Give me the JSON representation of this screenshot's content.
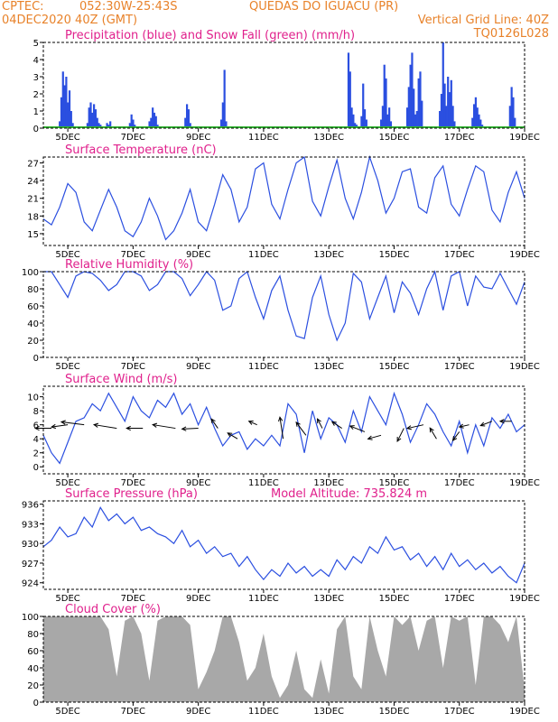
{
  "header": {
    "line1_left": "CPTEC:",
    "line1_coords": "052:30W-25:43S",
    "line1_location": "QUEDAS DO IGUACU (PR)",
    "line2_left": "04DEC2020 40Z (GMT)",
    "line2_right": "Vertical Grid Line: 40Z",
    "line3_right": "TQ0126L028"
  },
  "colors": {
    "header": "#e8822a",
    "title": "#e0208c",
    "line": "#2b4fe0",
    "snow": "#2fb02f",
    "cloud": "#a8a8a8",
    "axis": "#000000"
  },
  "x_axis": {
    "ticks": [
      "5DEC",
      "7DEC",
      "9DEC",
      "11DEC",
      "13DEC",
      "15DEC",
      "17DEC",
      "19DEC"
    ],
    "tick_days": [
      5,
      7,
      9,
      11,
      13,
      15,
      17,
      19
    ],
    "range_days": [
      4.25,
      19.0
    ]
  },
  "chart_data": [
    {
      "id": "precip",
      "type": "bar",
      "title": "Precipitation (blue) and Snow Fall (green) (mm/h)",
      "ylim": [
        0,
        5
      ],
      "yticks": [
        0,
        1,
        2,
        3,
        4,
        5
      ],
      "grid": false,
      "series": [
        {
          "name": "Precipitation",
          "color": "#2b4fe0",
          "x": [
            4.75,
            4.8,
            4.85,
            4.9,
            4.95,
            5.0,
            5.05,
            5.1,
            5.15,
            5.6,
            5.65,
            5.7,
            5.75,
            5.8,
            5.85,
            5.9,
            5.95,
            6.0,
            6.2,
            6.25,
            6.3,
            6.35,
            6.9,
            6.95,
            7.0,
            7.05,
            7.5,
            7.55,
            7.6,
            7.65,
            7.7,
            7.75,
            8.6,
            8.65,
            8.7,
            8.75,
            9.7,
            9.75,
            9.8,
            9.85,
            13.6,
            13.65,
            13.7,
            13.75,
            13.8,
            13.85,
            14.0,
            14.05,
            14.1,
            14.15,
            14.6,
            14.65,
            14.7,
            14.75,
            14.8,
            14.85,
            14.9,
            15.4,
            15.45,
            15.5,
            15.55,
            15.6,
            15.65,
            15.7,
            15.75,
            15.8,
            15.85,
            16.4,
            16.45,
            16.5,
            16.55,
            16.6,
            16.65,
            16.7,
            16.75,
            16.8,
            16.85,
            17.4,
            17.45,
            17.5,
            17.55,
            17.6,
            17.65,
            17.7,
            18.55,
            18.6,
            18.65,
            18.7
          ],
          "values": [
            0.4,
            1.8,
            3.3,
            2.5,
            3.0,
            1.5,
            2.2,
            1.0,
            0.3,
            0.3,
            1.2,
            1.5,
            0.9,
            1.4,
            1.1,
            0.6,
            0.3,
            0.2,
            0.3,
            0.2,
            0.4,
            0.1,
            0.3,
            0.8,
            0.5,
            0.2,
            0.4,
            0.6,
            1.2,
            0.9,
            0.7,
            0.2,
            0.6,
            1.4,
            1.1,
            0.3,
            0.5,
            1.5,
            3.4,
            0.4,
            4.4,
            3.3,
            1.2,
            0.8,
            0.3,
            0.2,
            0.7,
            2.6,
            1.1,
            0.5,
            0.5,
            1.3,
            3.7,
            2.9,
            0.8,
            1.2,
            0.4,
            1.2,
            2.4,
            3.7,
            4.4,
            2.3,
            0.8,
            1.0,
            2.9,
            3.3,
            1.6,
            1.0,
            2.0,
            5.0,
            2.6,
            1.3,
            3.0,
            2.1,
            2.8,
            1.3,
            0.4,
            0.6,
            1.4,
            1.8,
            1.2,
            0.8,
            0.5,
            0.2,
            1.3,
            2.4,
            1.8,
            0.6
          ]
        },
        {
          "name": "Snow Fall",
          "color": "#2fb02f",
          "x": [
            4.25,
            19.0
          ],
          "values": [
            0,
            0
          ]
        }
      ]
    },
    {
      "id": "temp",
      "type": "line",
      "title": "Surface Temperature (nC)",
      "ylim": [
        13,
        28
      ],
      "yticks": [
        15,
        18,
        21,
        24,
        27
      ],
      "grid": false,
      "series": [
        {
          "name": "Temperature",
          "color": "#2b4fe0",
          "x": [
            4.25,
            4.5,
            4.75,
            5.0,
            5.25,
            5.5,
            5.75,
            6.0,
            6.25,
            6.5,
            6.75,
            7.0,
            7.25,
            7.5,
            7.75,
            8.0,
            8.25,
            8.5,
            8.75,
            9.0,
            9.25,
            9.5,
            9.75,
            10.0,
            10.25,
            10.5,
            10.75,
            11.0,
            11.25,
            11.5,
            11.75,
            12.0,
            12.25,
            12.5,
            12.75,
            13.0,
            13.25,
            13.5,
            13.75,
            14.0,
            14.25,
            14.5,
            14.75,
            15.0,
            15.25,
            15.5,
            15.75,
            16.0,
            16.25,
            16.5,
            16.75,
            17.0,
            17.25,
            17.5,
            17.75,
            18.0,
            18.25,
            18.5,
            18.75,
            19.0
          ],
          "values": [
            17.5,
            16.5,
            19.5,
            23.5,
            22.0,
            17.0,
            15.5,
            19.0,
            22.5,
            19.5,
            15.5,
            14.5,
            17.0,
            21.0,
            18.0,
            14.0,
            15.5,
            18.5,
            22.5,
            17.0,
            15.5,
            20.0,
            25.0,
            22.5,
            17.0,
            19.5,
            26.0,
            27.0,
            20.0,
            17.5,
            22.5,
            27.0,
            28.0,
            20.5,
            18.0,
            23.0,
            27.5,
            21.0,
            17.5,
            22.0,
            28.0,
            24.0,
            18.5,
            21.0,
            25.5,
            26.0,
            19.5,
            18.5,
            24.5,
            26.5,
            20.0,
            18.0,
            22.5,
            26.5,
            25.5,
            19.0,
            17.0,
            22.0,
            25.5,
            21.0
          ]
        }
      ]
    },
    {
      "id": "rh",
      "type": "line",
      "title": "Relative Humidity (%)",
      "ylim": [
        0,
        100
      ],
      "yticks": [
        0,
        20,
        40,
        60,
        80,
        100
      ],
      "grid": false,
      "series": [
        {
          "name": "Relative Humidity",
          "color": "#2b4fe0",
          "x": [
            4.25,
            4.5,
            4.75,
            5.0,
            5.25,
            5.5,
            5.75,
            6.0,
            6.25,
            6.5,
            6.75,
            7.0,
            7.25,
            7.5,
            7.75,
            8.0,
            8.25,
            8.5,
            8.75,
            9.0,
            9.25,
            9.5,
            9.75,
            10.0,
            10.25,
            10.5,
            10.75,
            11.0,
            11.25,
            11.5,
            11.75,
            12.0,
            12.25,
            12.5,
            12.75,
            13.0,
            13.25,
            13.5,
            13.75,
            14.0,
            14.25,
            14.5,
            14.75,
            15.0,
            15.25,
            15.5,
            15.75,
            16.0,
            16.25,
            16.5,
            16.75,
            17.0,
            17.25,
            17.5,
            17.75,
            18.0,
            18.25,
            18.5,
            18.75,
            19.0
          ],
          "values": [
            100,
            100,
            85,
            70,
            95,
            100,
            98,
            90,
            78,
            85,
            100,
            100,
            95,
            78,
            85,
            100,
            100,
            92,
            72,
            85,
            100,
            90,
            55,
            60,
            92,
            100,
            70,
            45,
            78,
            95,
            55,
            25,
            22,
            70,
            95,
            50,
            20,
            40,
            98,
            88,
            45,
            70,
            95,
            52,
            88,
            75,
            50,
            80,
            100,
            55,
            95,
            100,
            60,
            95,
            82,
            80,
            98,
            80,
            62,
            88
          ]
        }
      ]
    },
    {
      "id": "wind",
      "type": "line",
      "title": "Surface Wind (m/s)",
      "ylim": [
        -1,
        11.5
      ],
      "yticks": [
        0,
        2,
        4,
        6,
        8,
        10
      ],
      "grid": false,
      "series": [
        {
          "name": "Wind Speed",
          "color": "#2b4fe0",
          "x": [
            4.25,
            4.5,
            4.75,
            5.0,
            5.25,
            5.5,
            5.75,
            6.0,
            6.25,
            6.5,
            6.75,
            7.0,
            7.25,
            7.5,
            7.75,
            8.0,
            8.25,
            8.5,
            8.75,
            9.0,
            9.25,
            9.5,
            9.75,
            10.0,
            10.25,
            10.5,
            10.75,
            11.0,
            11.25,
            11.5,
            11.75,
            12.0,
            12.25,
            12.5,
            12.75,
            13.0,
            13.25,
            13.5,
            13.75,
            14.0,
            14.25,
            14.5,
            14.75,
            15.0,
            15.25,
            15.5,
            15.75,
            16.0,
            16.25,
            16.5,
            16.75,
            17.0,
            17.25,
            17.5,
            17.75,
            18.0,
            18.25,
            18.5,
            18.75,
            19.0
          ],
          "values": [
            4.5,
            2.0,
            0.5,
            3.5,
            6.5,
            7.0,
            9.0,
            8.0,
            10.5,
            8.5,
            6.5,
            10.0,
            8.0,
            7.0,
            9.5,
            8.5,
            10.5,
            7.5,
            9.0,
            6.0,
            8.5,
            5.5,
            3.0,
            4.5,
            5.0,
            2.5,
            4.0,
            3.0,
            4.5,
            3.0,
            9.0,
            7.5,
            2.0,
            8.0,
            4.0,
            7.0,
            6.0,
            3.5,
            8.0,
            5.0,
            10.0,
            8.0,
            6.0,
            10.5,
            7.5,
            3.5,
            6.0,
            9.0,
            7.5,
            5.0,
            3.0,
            6.5,
            2.0,
            6.0,
            3.0,
            7.0,
            5.5,
            7.5,
            5.0,
            6.0
          ]
        }
      ],
      "arrows": [
        {
          "x": 4.5,
          "y": 5.5,
          "dx": -1,
          "dy": 0
        },
        {
          "x": 5.0,
          "y": 6.0,
          "dx": -1,
          "dy": -0.3
        },
        {
          "x": 5.5,
          "y": 6.0,
          "dx": -1.4,
          "dy": 0.4
        },
        {
          "x": 6.5,
          "y": 5.5,
          "dx": -1.4,
          "dy": 0.5
        },
        {
          "x": 7.3,
          "y": 5.5,
          "dx": -1.0,
          "dy": 0
        },
        {
          "x": 8.3,
          "y": 5.5,
          "dx": -1.4,
          "dy": 0.5
        },
        {
          "x": 9.0,
          "y": 5.5,
          "dx": -1.0,
          "dy": -0.1
        },
        {
          "x": 9.6,
          "y": 5.5,
          "dx": -0.4,
          "dy": 1.3
        },
        {
          "x": 10.2,
          "y": 4.0,
          "dx": -0.6,
          "dy": 0.8
        },
        {
          "x": 10.8,
          "y": 6.0,
          "dx": -0.5,
          "dy": 0.5
        },
        {
          "x": 11.6,
          "y": 4.0,
          "dx": -0.2,
          "dy": 3.0
        },
        {
          "x": 12.3,
          "y": 4.5,
          "dx": -0.6,
          "dy": 1.8
        },
        {
          "x": 12.8,
          "y": 5.5,
          "dx": -0.3,
          "dy": 1.3
        },
        {
          "x": 13.4,
          "y": 5.5,
          "dx": -0.6,
          "dy": 0.9
        },
        {
          "x": 14.1,
          "y": 5.0,
          "dx": -0.9,
          "dy": 0.8
        },
        {
          "x": 14.6,
          "y": 4.5,
          "dx": -0.8,
          "dy": -0.5
        },
        {
          "x": 15.3,
          "y": 5.5,
          "dx": -0.4,
          "dy": -1.8
        },
        {
          "x": 15.9,
          "y": 6.0,
          "dx": -1.0,
          "dy": -0.5
        },
        {
          "x": 16.3,
          "y": 4.0,
          "dx": -0.4,
          "dy": 1.5
        },
        {
          "x": 17.0,
          "y": 5.0,
          "dx": -0.4,
          "dy": -1.2
        },
        {
          "x": 17.3,
          "y": 6.0,
          "dx": -0.6,
          "dy": -0.3
        },
        {
          "x": 18.0,
          "y": 6.5,
          "dx": -0.7,
          "dy": -0.6
        },
        {
          "x": 18.6,
          "y": 6.5,
          "dx": -0.7,
          "dy": 0
        }
      ]
    },
    {
      "id": "pressure",
      "type": "line",
      "title": "Surface Pressure (hPa)",
      "subtitle": "Model Altitude: 735.824 m",
      "ylim": [
        923,
        936.5
      ],
      "yticks": [
        924,
        927,
        930,
        933,
        936
      ],
      "grid": false,
      "series": [
        {
          "name": "Pressure",
          "color": "#2b4fe0",
          "x": [
            4.25,
            4.5,
            4.75,
            5.0,
            5.25,
            5.5,
            5.75,
            6.0,
            6.25,
            6.5,
            6.75,
            7.0,
            7.25,
            7.5,
            7.75,
            8.0,
            8.25,
            8.5,
            8.75,
            9.0,
            9.25,
            9.5,
            9.75,
            10.0,
            10.25,
            10.5,
            10.75,
            11.0,
            11.25,
            11.5,
            11.75,
            12.0,
            12.25,
            12.5,
            12.75,
            13.0,
            13.25,
            13.5,
            13.75,
            14.0,
            14.25,
            14.5,
            14.75,
            15.0,
            15.25,
            15.5,
            15.75,
            16.0,
            16.25,
            16.5,
            16.75,
            17.0,
            17.25,
            17.5,
            17.75,
            18.0,
            18.25,
            18.5,
            18.75,
            19.0
          ],
          "values": [
            929.5,
            930.5,
            932.5,
            931.0,
            931.5,
            934.0,
            932.5,
            935.5,
            933.5,
            934.5,
            933.0,
            934.0,
            932.0,
            932.5,
            931.5,
            931.0,
            930.0,
            932.0,
            929.5,
            930.5,
            928.5,
            929.5,
            928.0,
            928.5,
            926.5,
            928.0,
            926.0,
            924.5,
            926.0,
            925.0,
            927.0,
            925.5,
            926.5,
            925.0,
            926.0,
            925.0,
            927.5,
            926.0,
            928.0,
            927.0,
            929.5,
            928.5,
            931.0,
            929.0,
            929.5,
            927.5,
            928.5,
            926.5,
            928.0,
            926.0,
            928.5,
            926.5,
            927.5,
            926.0,
            927.0,
            925.5,
            926.5,
            925.0,
            924.0,
            927.0
          ]
        }
      ]
    },
    {
      "id": "cloud",
      "type": "area",
      "title": "Cloud Cover (%)",
      "ylim": [
        0,
        100
      ],
      "yticks": [
        0,
        20,
        40,
        60,
        80,
        100
      ],
      "grid": false,
      "series": [
        {
          "name": "Cloud Cover",
          "color": "#a8a8a8",
          "x": [
            4.25,
            4.5,
            4.75,
            5.0,
            5.25,
            5.5,
            5.75,
            6.0,
            6.25,
            6.5,
            6.75,
            7.0,
            7.25,
            7.5,
            7.75,
            8.0,
            8.25,
            8.5,
            8.75,
            9.0,
            9.25,
            9.5,
            9.75,
            10.0,
            10.25,
            10.5,
            10.75,
            11.0,
            11.25,
            11.5,
            11.75,
            12.0,
            12.25,
            12.5,
            12.75,
            13.0,
            13.25,
            13.5,
            13.75,
            14.0,
            14.25,
            14.5,
            14.75,
            15.0,
            15.25,
            15.5,
            15.75,
            16.0,
            16.25,
            16.5,
            16.75,
            17.0,
            17.25,
            17.5,
            17.75,
            18.0,
            18.25,
            18.5,
            18.75,
            19.0
          ],
          "values": [
            100,
            100,
            100,
            100,
            100,
            100,
            100,
            100,
            85,
            30,
            95,
            100,
            80,
            25,
            95,
            100,
            100,
            100,
            90,
            15,
            35,
            60,
            100,
            100,
            70,
            25,
            40,
            80,
            30,
            5,
            20,
            60,
            15,
            5,
            50,
            10,
            85,
            100,
            30,
            15,
            100,
            60,
            30,
            100,
            90,
            100,
            60,
            95,
            100,
            40,
            100,
            95,
            100,
            20,
            100,
            100,
            90,
            70,
            100,
            15
          ]
        }
      ]
    }
  ]
}
